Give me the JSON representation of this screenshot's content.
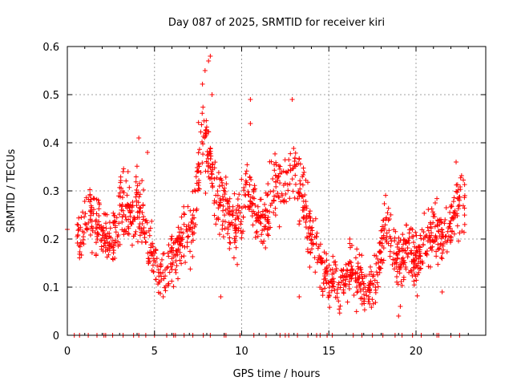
{
  "chart_data": {
    "type": "scatter",
    "title": "Day 087 of 2025, SRMTID for receiver kiri",
    "xlabel": "GPS time / hours",
    "ylabel": "SRMTID / TECUs",
    "xlim": [
      0,
      24
    ],
    "ylim": [
      0,
      0.6
    ],
    "x_ticks": [
      0,
      5,
      10,
      15,
      20
    ],
    "x_tick_labels": [
      "0",
      "5",
      "10",
      "15",
      "20"
    ],
    "y_ticks": [
      0,
      0.1,
      0.2,
      0.3,
      0.4,
      0.5,
      0.6
    ],
    "y_tick_labels": [
      "0",
      "0.1",
      "0.2",
      "0.3",
      "0.4",
      "0.5",
      "0.6"
    ],
    "grid": true,
    "marker": "plus",
    "color": "#ff0000",
    "series": [
      {
        "name": "SRMTID",
        "trend_x": [
          0,
          0.5,
          0.8,
          1.0,
          1.3,
          1.6,
          2.0,
          2.3,
          2.6,
          2.9,
          3.2,
          3.5,
          3.8,
          4.0,
          4.3,
          4.6,
          5.0,
          5.3,
          5.6,
          5.9,
          6.2,
          6.5,
          6.8,
          7.1,
          7.4,
          7.6,
          7.8,
          8.0,
          8.2,
          8.4,
          8.7,
          9.0,
          9.3,
          9.6,
          9.9,
          10.2,
          10.5,
          10.8,
          11.1,
          11.4,
          11.7,
          12.0,
          12.3,
          12.6,
          12.9,
          13.2,
          13.5,
          13.8,
          14.1,
          14.4,
          14.7,
          15.0,
          15.3,
          15.6,
          15.9,
          16.2,
          16.5,
          16.8,
          17.1,
          17.4,
          17.7,
          18.0,
          18.3,
          18.6,
          18.9,
          19.2,
          19.5,
          19.8,
          20.1,
          20.4,
          20.7,
          21.0,
          21.3,
          21.6,
          21.9,
          22.2,
          22.5,
          22.8
        ],
        "trend_y": [
          0.22,
          0.21,
          0.2,
          0.24,
          0.26,
          0.25,
          0.2,
          0.19,
          0.2,
          0.24,
          0.27,
          0.26,
          0.24,
          0.28,
          0.25,
          0.2,
          0.16,
          0.14,
          0.13,
          0.15,
          0.17,
          0.2,
          0.22,
          0.21,
          0.3,
          0.38,
          0.42,
          0.4,
          0.36,
          0.3,
          0.29,
          0.27,
          0.24,
          0.22,
          0.25,
          0.3,
          0.29,
          0.26,
          0.23,
          0.25,
          0.28,
          0.31,
          0.3,
          0.33,
          0.36,
          0.32,
          0.27,
          0.24,
          0.2,
          0.17,
          0.14,
          0.12,
          0.11,
          0.1,
          0.11,
          0.12,
          0.13,
          0.11,
          0.1,
          0.09,
          0.12,
          0.18,
          0.23,
          0.2,
          0.16,
          0.15,
          0.19,
          0.17,
          0.15,
          0.18,
          0.2,
          0.21,
          0.22,
          0.2,
          0.23,
          0.25,
          0.27,
          0.28
        ],
        "spread": 0.05,
        "n_points": 1500,
        "outliers": [
          [
            0,
            0.22
          ],
          [
            7.9,
            0.55
          ],
          [
            8.2,
            0.58
          ],
          [
            8.1,
            0.57
          ],
          [
            12.9,
            0.49
          ],
          [
            10.5,
            0.49
          ],
          [
            10.5,
            0.44
          ],
          [
            8.3,
            0.5
          ],
          [
            4.1,
            0.41
          ],
          [
            4.6,
            0.38
          ],
          [
            3.2,
            0.34
          ],
          [
            16.2,
            0.2
          ],
          [
            19.0,
            0.04
          ],
          [
            19.1,
            0.06
          ],
          [
            8.8,
            0.08
          ],
          [
            22.3,
            0.36
          ],
          [
            21.5,
            0.09
          ],
          [
            5.5,
            0.08
          ],
          [
            9.3,
            0.18
          ],
          [
            13.3,
            0.08
          ]
        ]
      }
    ],
    "zero_markers_x": [
      0.4,
      0.7,
      1.2,
      1.7,
      2.1,
      2.2,
      2.6,
      3.2,
      3.8,
      4.1,
      4.5,
      5.0,
      5.7,
      6.1,
      6.2,
      6.7,
      7.2,
      7.8,
      8.2,
      9.0,
      9.1,
      9.9,
      10.7,
      11.4,
      12.2,
      12.5,
      12.7,
      13.2,
      13.8,
      14.3,
      14.5,
      14.9,
      15.2,
      16.4,
      16.9,
      17.5,
      18.1,
      18.8,
      19.2,
      19.8,
      20.3,
      21.2,
      21.3,
      22.0,
      22.5
    ]
  }
}
